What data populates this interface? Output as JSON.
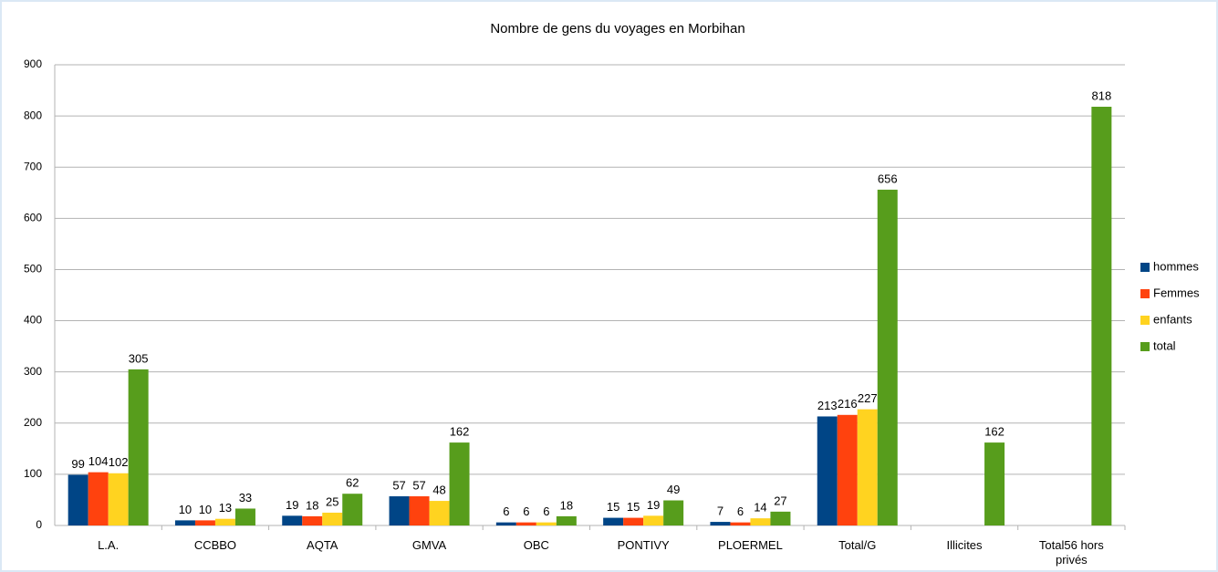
{
  "chart_data": {
    "type": "bar",
    "title": "Nombre de gens du voyages en Morbihan",
    "categories": [
      "L.A.",
      "CCBBO",
      "AQTA",
      "GMVA",
      "OBC",
      "PONTIVY",
      "PLOERMEL",
      "Total/G",
      "Illicites",
      "Total56 hors privés"
    ],
    "series": [
      {
        "name": "hommes",
        "color": "#004586",
        "values": [
          99,
          10,
          19,
          57,
          6,
          15,
          7,
          213,
          null,
          null
        ]
      },
      {
        "name": "Femmes",
        "color": "#ff420e",
        "values": [
          104,
          10,
          18,
          57,
          6,
          15,
          6,
          216,
          null,
          null
        ]
      },
      {
        "name": "enfants",
        "color": "#ffd320",
        "values": [
          102,
          13,
          25,
          48,
          6,
          19,
          14,
          227,
          null,
          null
        ]
      },
      {
        "name": "total",
        "color": "#579d1c",
        "values": [
          305,
          33,
          62,
          162,
          18,
          49,
          27,
          656,
          162,
          818
        ]
      }
    ],
    "ylim": [
      0,
      900
    ],
    "yticks": [
      0,
      100,
      200,
      300,
      400,
      500,
      600,
      700,
      800,
      900
    ],
    "grid": true,
    "legend": "right"
  }
}
